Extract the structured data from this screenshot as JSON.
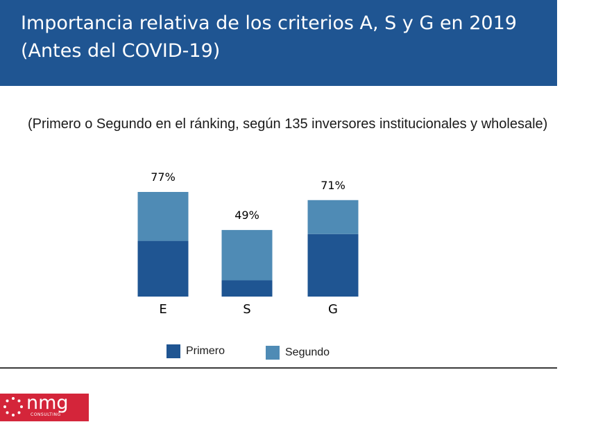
{
  "title": {
    "line1": "Importancia relativa de los criterios A, S y G en 2019",
    "line2": "(Antes del COVID-19)"
  },
  "subtitle": "(Primero o Segundo en el ránking, según 135 inversores institucionales y wholesale)",
  "colors": {
    "banner": "#1f5592",
    "primero": "#1f5592",
    "segundo": "#4f8bb5",
    "logo": "#d4253a"
  },
  "chart_data": {
    "type": "bar",
    "stacked": true,
    "categories": [
      "E",
      "S",
      "G"
    ],
    "series": [
      {
        "name": "Primero",
        "values": [
          41,
          12,
          46
        ]
      },
      {
        "name": "Segundo",
        "values": [
          36,
          37,
          25
        ]
      }
    ],
    "totals": [
      "77%",
      "49%",
      "71%"
    ],
    "ylim": [
      0,
      80
    ],
    "grid": false,
    "legend": "bottom"
  },
  "logo": {
    "word": "nmg",
    "sub": "CONSULTING"
  }
}
